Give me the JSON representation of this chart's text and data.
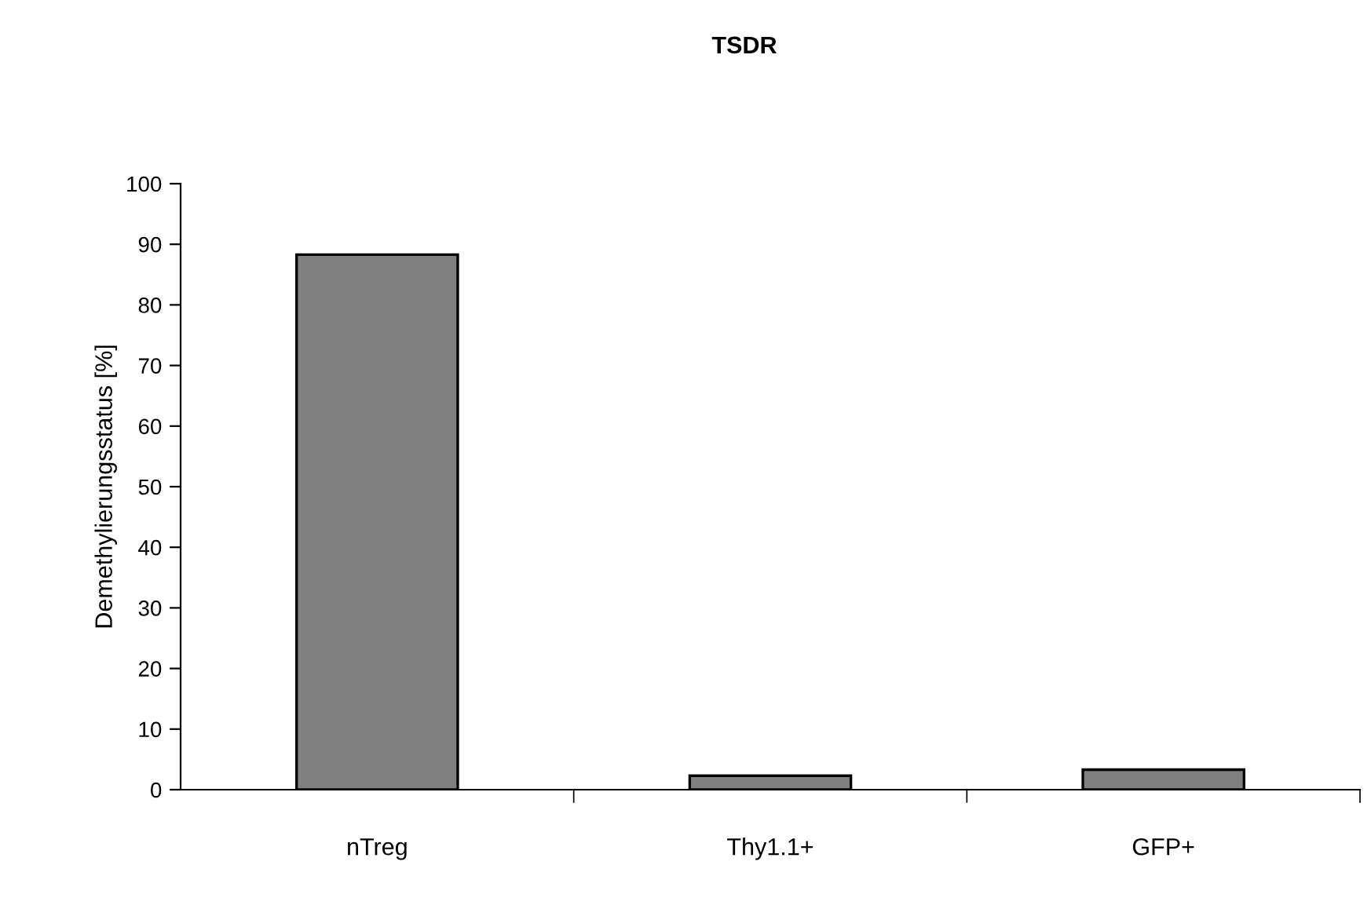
{
  "chart_data": {
    "type": "bar",
    "title": "TSDR",
    "ylabel": "Demethylierungsstatus [%]",
    "categories": [
      "nTreg",
      "Thy1.1+",
      "GFP+"
    ],
    "values": [
      88.3,
      2.3,
      3.3
    ],
    "color": "#808080",
    "ylim": [
      0,
      100
    ],
    "yticks": [
      0,
      10,
      20,
      30,
      40,
      50,
      60,
      70,
      80,
      90,
      100
    ],
    "grid": false,
    "legend": false
  }
}
